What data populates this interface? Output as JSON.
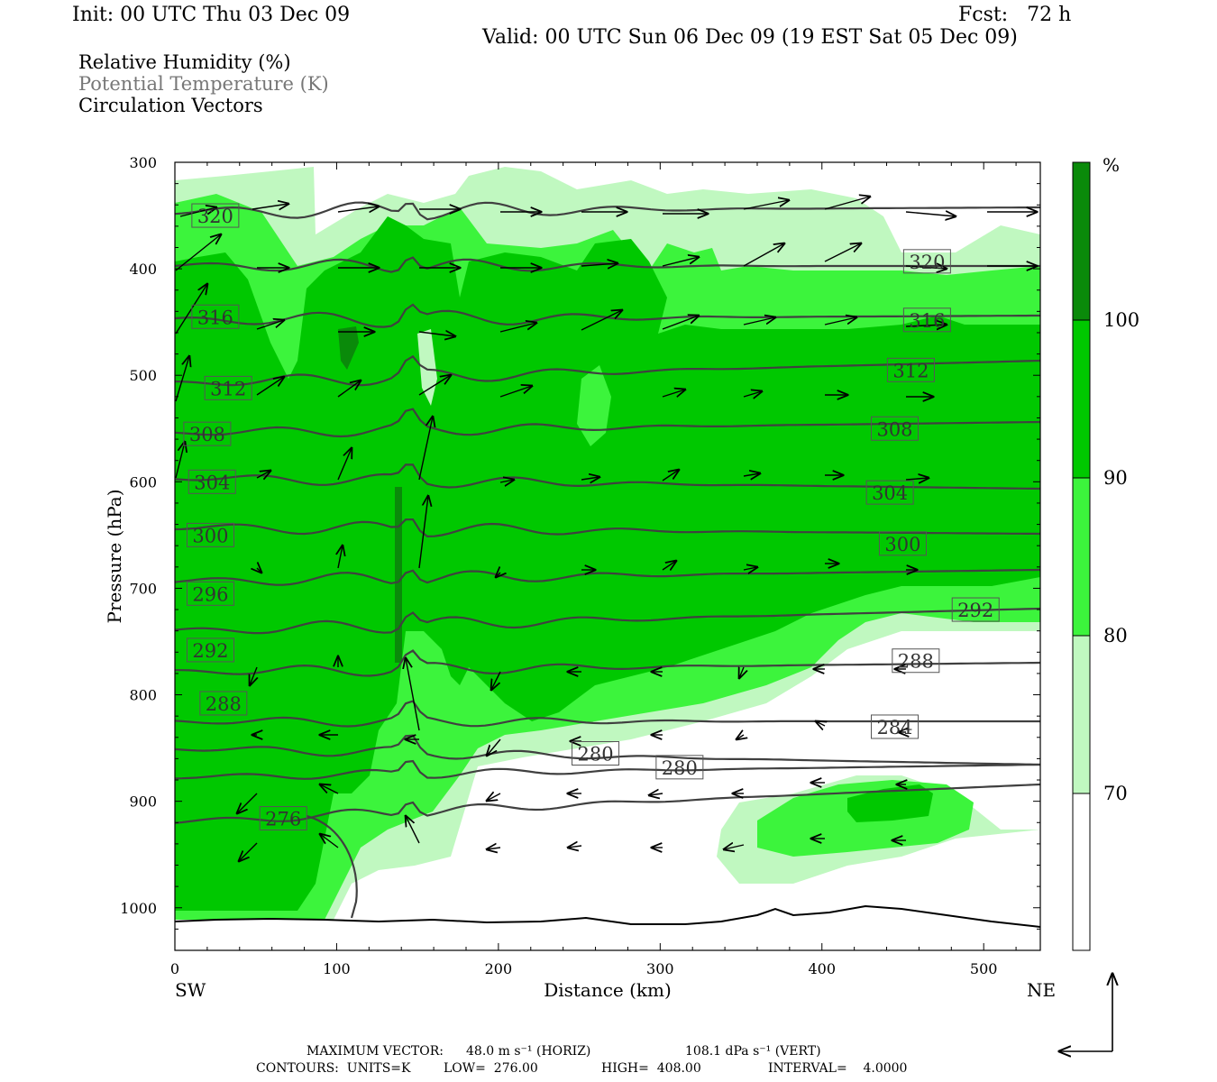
{
  "header": {
    "init": "Init: 00 UTC Thu 03 Dec 09",
    "fcst": "Fcst:   72 h",
    "valid": "Valid: 00 UTC Sun 06 Dec 09 (19 EST Sat 05 Dec 09)"
  },
  "legend": {
    "line1": "Relative Humidity (%)",
    "line2": "Potential Temperature (K)",
    "line3": "Circulation Vectors"
  },
  "footer": {
    "max_vector_label": "MAXIMUM VECTOR:",
    "max_vector_horiz": "48.0 m s⁻¹ (HORIZ)",
    "max_vector_vert": "108.1 dPa s⁻¹ (VERT)",
    "contours_units": "CONTOURS:  UNITS=K",
    "contours_low": "LOW=  276.00",
    "contours_high": "HIGH=  408.00",
    "contours_interval": "INTERVAL=    4.0000"
  },
  "colors": {
    "rh70": "#c0f8c0",
    "rh80": "#3cf43c",
    "rh90": "#00c800",
    "rh100": "#0a8a0a",
    "contour": "#404040",
    "surface": "#000000"
  },
  "chart_data": {
    "type": "cross-section",
    "xlabel": "Distance (km)",
    "ylabel": "Pressure (hPa)",
    "xlim": [
      0,
      535
    ],
    "ylim": [
      1040,
      300
    ],
    "x_ticks": [
      "0",
      "100",
      "200",
      "300",
      "400",
      "500"
    ],
    "y_ticks": [
      "300",
      "400",
      "500",
      "600",
      "700",
      "800",
      "900",
      "1000"
    ],
    "x_left_label": "SW",
    "x_right_label": "NE",
    "colorbar": {
      "unit": "%",
      "levels": [
        "70",
        "80",
        "90",
        "100"
      ],
      "colors": [
        "#c0f8c0",
        "#3cf43c",
        "#00c800",
        "#0a8a0a"
      ]
    },
    "theta_contour_labels": [
      {
        "value": "320",
        "x": 25,
        "p": 350
      },
      {
        "value": "320",
        "x": 465,
        "p": 393
      },
      {
        "value": "316",
        "x": 25,
        "p": 445
      },
      {
        "value": "316",
        "x": 465,
        "p": 448
      },
      {
        "value": "312",
        "x": 33,
        "p": 512
      },
      {
        "value": "312",
        "x": 455,
        "p": 495
      },
      {
        "value": "308",
        "x": 20,
        "p": 555
      },
      {
        "value": "308",
        "x": 445,
        "p": 550
      },
      {
        "value": "304",
        "x": 23,
        "p": 600
      },
      {
        "value": "304",
        "x": 442,
        "p": 610
      },
      {
        "value": "300",
        "x": 22,
        "p": 650
      },
      {
        "value": "300",
        "x": 450,
        "p": 658
      },
      {
        "value": "296",
        "x": 22,
        "p": 705
      },
      {
        "value": "292",
        "x": 22,
        "p": 758
      },
      {
        "value": "292",
        "x": 495,
        "p": 720
      },
      {
        "value": "288",
        "x": 30,
        "p": 808
      },
      {
        "value": "288",
        "x": 458,
        "p": 768
      },
      {
        "value": "284",
        "x": 445,
        "p": 830
      },
      {
        "value": "280",
        "x": 260,
        "p": 855
      },
      {
        "value": "280",
        "x": 312,
        "p": 868
      },
      {
        "value": "276",
        "x": 67,
        "p": 916
      }
    ]
  }
}
